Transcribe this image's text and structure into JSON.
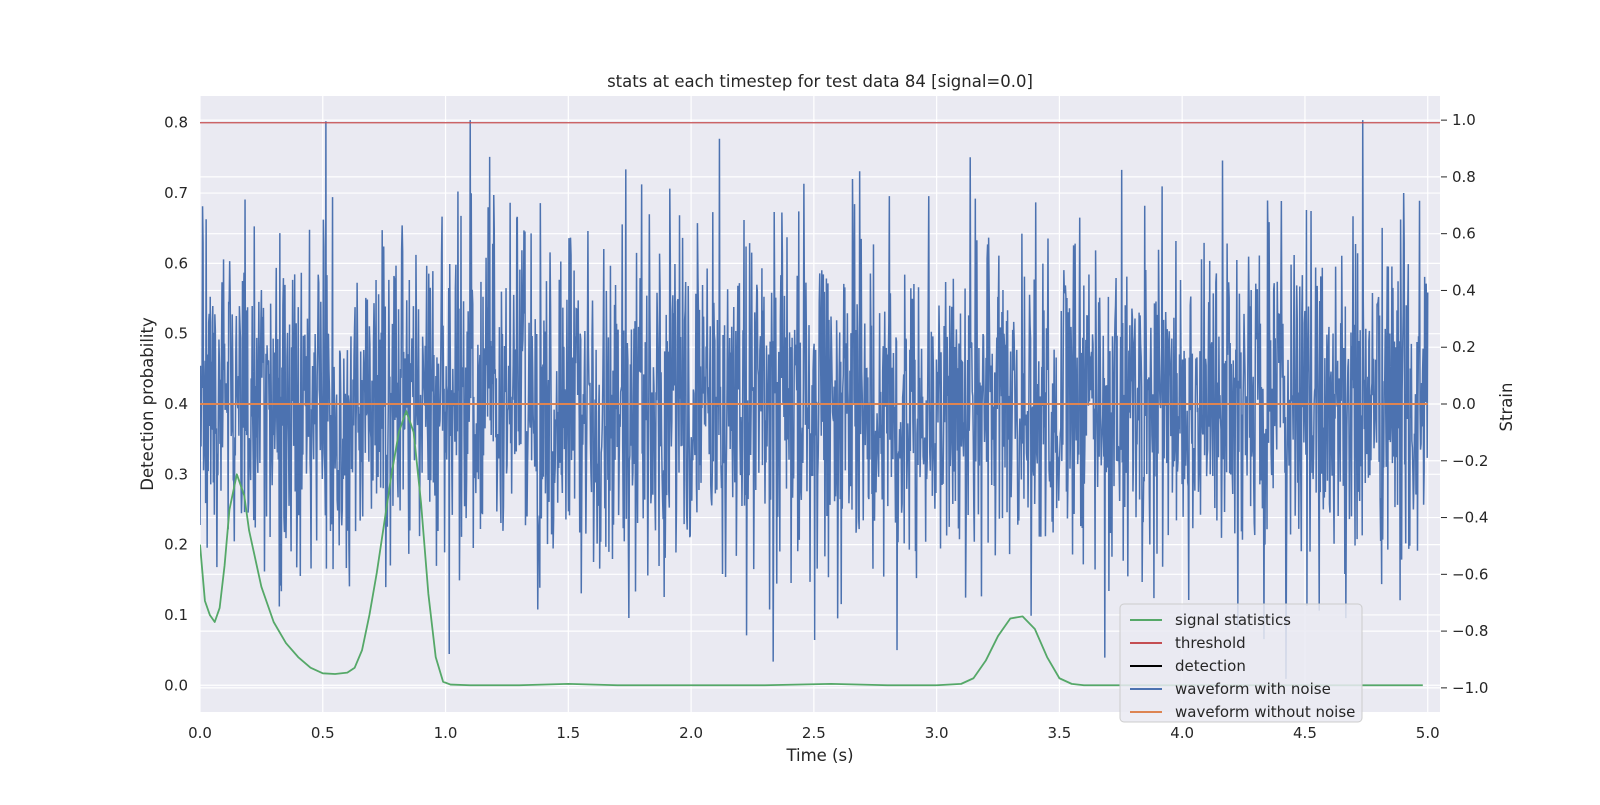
{
  "chart_data": {
    "type": "line",
    "title": "stats at each timestep for test data 84 [signal=0.0]",
    "xlabel": "Time (s)",
    "ylabel": "Detection probability",
    "y2label": "Strain",
    "xlim": [
      0.0,
      5.05
    ],
    "ylim": [
      -0.038,
      0.838
    ],
    "y2lim": [
      -1.085,
      1.085
    ],
    "x_ticks": [
      "0.0",
      "0.5",
      "1.0",
      "1.5",
      "2.0",
      "2.5",
      "3.0",
      "3.5",
      "4.0",
      "4.5",
      "5.0"
    ],
    "y_ticks": [
      "0.0",
      "0.1",
      "0.2",
      "0.3",
      "0.4",
      "0.5",
      "0.6",
      "0.7",
      "0.8"
    ],
    "y2_ticks": [
      "−1.0",
      "−0.8",
      "−0.6",
      "−0.4",
      "−0.2",
      "0.0",
      "0.2",
      "0.4",
      "0.6",
      "0.8",
      "1.0"
    ],
    "grid": true,
    "legend_position": "lower-right",
    "colors": {
      "signal_statistics": "#55a868",
      "threshold": "#c44e52",
      "detection": "#000000",
      "waveform_with_noise": "#4c72b0",
      "waveform_without_noise": "#dd8452",
      "plot_background": "#eaeaf2",
      "grid": "#ffffff"
    },
    "series": [
      {
        "name": "signal statistics",
        "axis": "left",
        "x": [
          0.0,
          0.02,
          0.04,
          0.06,
          0.08,
          0.1,
          0.12,
          0.15,
          0.18,
          0.2,
          0.25,
          0.3,
          0.35,
          0.4,
          0.45,
          0.5,
          0.55,
          0.6,
          0.63,
          0.66,
          0.69,
          0.72,
          0.75,
          0.78,
          0.81,
          0.84,
          0.87,
          0.9,
          0.93,
          0.96,
          0.99,
          1.02,
          1.1,
          1.3,
          1.5,
          1.7,
          2.0,
          2.3,
          2.57,
          2.8,
          3.0,
          3.1,
          3.15,
          3.2,
          3.25,
          3.3,
          3.35,
          3.4,
          3.45,
          3.5,
          3.55,
          3.6,
          3.8,
          4.0,
          4.3,
          4.6,
          4.98
        ],
        "values": [
          0.2,
          0.12,
          0.1,
          0.09,
          0.11,
          0.17,
          0.25,
          0.3,
          0.27,
          0.22,
          0.14,
          0.09,
          0.06,
          0.04,
          0.025,
          0.017,
          0.016,
          0.018,
          0.025,
          0.05,
          0.1,
          0.16,
          0.23,
          0.3,
          0.36,
          0.39,
          0.36,
          0.26,
          0.13,
          0.04,
          0.005,
          0.001,
          0.0,
          0.0,
          0.002,
          0.0,
          0.0,
          0.0,
          0.002,
          0.0,
          0.0,
          0.002,
          0.01,
          0.035,
          0.07,
          0.095,
          0.098,
          0.08,
          0.04,
          0.01,
          0.002,
          0.0,
          0.0,
          0.0,
          0.0,
          0.0,
          0.0
        ]
      },
      {
        "name": "threshold",
        "axis": "left",
        "x": [
          0.0,
          5.05
        ],
        "values": [
          0.8,
          0.8
        ]
      },
      {
        "name": "detection",
        "axis": "left",
        "x": [],
        "values": []
      },
      {
        "name": "waveform with noise",
        "axis": "right",
        "x_range": [
          0.0,
          5.0
        ],
        "samples": 2400,
        "values_range": [
          -1.0,
          1.0
        ],
        "std": 0.3
      },
      {
        "name": "waveform without noise",
        "axis": "right",
        "x": [
          0.0,
          5.0
        ],
        "values": [
          0.0,
          0.0
        ]
      }
    ]
  }
}
